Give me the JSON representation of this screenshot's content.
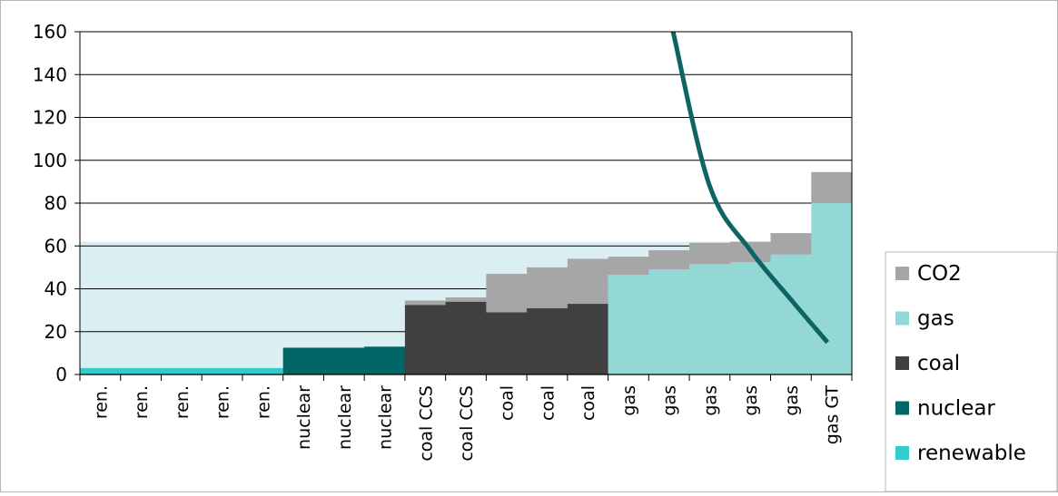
{
  "chart_data": {
    "type": "bar",
    "stacked": true,
    "ylim": [
      0,
      160
    ],
    "yticks": [
      0,
      20,
      40,
      60,
      80,
      100,
      120,
      140,
      160
    ],
    "categories": [
      "ren.",
      "ren.",
      "ren.",
      "ren.",
      "ren.",
      "nuclear",
      "nuclear",
      "nuclear",
      "coal CCS",
      "coal CCS",
      "coal",
      "coal",
      "coal",
      "gas",
      "gas",
      "gas",
      "gas",
      "gas",
      "gas GT"
    ],
    "fuel_type": [
      "renewable",
      "renewable",
      "renewable",
      "renewable",
      "renewable",
      "nuclear",
      "nuclear",
      "nuclear",
      "coal",
      "coal",
      "coal",
      "coal",
      "coal",
      "gas",
      "gas",
      "gas",
      "gas",
      "gas",
      "gas"
    ],
    "series": [
      {
        "name": "renewable",
        "values": [
          3,
          3,
          3,
          3,
          3,
          0,
          0,
          0,
          0,
          0,
          0,
          0,
          0,
          0,
          0,
          0,
          0,
          0,
          0
        ]
      },
      {
        "name": "nuclear",
        "values": [
          0,
          0,
          0,
          0,
          0,
          12.5,
          12.5,
          13,
          0,
          0,
          0,
          0,
          0,
          0,
          0,
          0,
          0,
          0,
          0
        ]
      },
      {
        "name": "coal",
        "values": [
          0,
          0,
          0,
          0,
          0,
          0,
          0,
          0,
          32.5,
          34,
          29,
          31,
          33,
          0,
          0,
          0,
          0,
          0,
          0
        ]
      },
      {
        "name": "gas",
        "values": [
          0,
          0,
          0,
          0,
          0,
          0,
          0,
          0,
          0,
          0,
          0,
          0,
          0,
          46.5,
          49,
          51.5,
          52.5,
          56,
          80
        ]
      },
      {
        "name": "CO2",
        "values": [
          0,
          0,
          0,
          0,
          0,
          0,
          0,
          0,
          2,
          2,
          18,
          19,
          21,
          8.5,
          9,
          10,
          9.5,
          10,
          14.5
        ]
      }
    ],
    "background_band": {
      "from": 0,
      "to": 62,
      "color": "#dbeef2"
    },
    "demand_curve": {
      "x_slots": [
        14.6,
        15.5,
        16.5,
        17.5,
        18.4
      ],
      "y": [
        160,
        88,
        58,
        35,
        15
      ]
    },
    "colors": {
      "renewable": "#33cccc",
      "nuclear": "#006666",
      "coal": "#404040",
      "gas": "#93d8d4",
      "CO2": "#a6a6a6",
      "curve": "#0e6363",
      "gridline": "#000000"
    },
    "legend": {
      "position": "right",
      "entries": [
        {
          "label": "CO2",
          "series": "CO2"
        },
        {
          "label": "gas",
          "series": "gas"
        },
        {
          "label": "coal",
          "series": "coal"
        },
        {
          "label": "nuclear",
          "series": "nuclear"
        },
        {
          "label": "renewable",
          "series": "renewable"
        }
      ]
    }
  }
}
